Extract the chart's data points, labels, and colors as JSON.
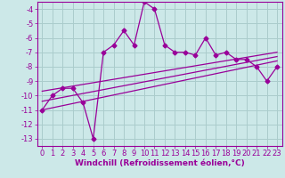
{
  "main_x": [
    0,
    1,
    2,
    3,
    4,
    5,
    6,
    7,
    8,
    9,
    10,
    11,
    12,
    13,
    14,
    15,
    16,
    17,
    18,
    19,
    20,
    21,
    22,
    23
  ],
  "main_y": [
    -11,
    -10,
    -9.5,
    -9.5,
    -10.5,
    -13,
    -7,
    -6.5,
    -5.5,
    -6.5,
    -3.5,
    -4,
    -6.5,
    -7,
    -7,
    -7.2,
    -6,
    -7.2,
    -7,
    -7.5,
    -7.5,
    -8,
    -9,
    -8
  ],
  "line1_x": [
    0,
    23
  ],
  "line1_y": [
    -11.0,
    -7.6
  ],
  "line2_x": [
    0,
    23
  ],
  "line2_y": [
    -10.4,
    -7.3
  ],
  "line3_x": [
    0,
    23
  ],
  "line3_y": [
    -9.7,
    -7.0
  ],
  "bg_color": "#cce8e8",
  "line_color": "#990099",
  "grid_color": "#aacccc",
  "xlabel": "Windchill (Refroidissement éolien,°C)",
  "ylim": [
    -13.5,
    -3.5
  ],
  "xlim": [
    -0.5,
    23.5
  ],
  "yticks": [
    -13,
    -12,
    -11,
    -10,
    -9,
    -8,
    -7,
    -6,
    -5,
    -4
  ],
  "xticks": [
    0,
    1,
    2,
    3,
    4,
    5,
    6,
    7,
    8,
    9,
    10,
    11,
    12,
    13,
    14,
    15,
    16,
    17,
    18,
    19,
    20,
    21,
    22,
    23
  ],
  "marker": "D",
  "marker_size": 2.5,
  "line_width": 0.9,
  "xlabel_fontsize": 6.5,
  "tick_fontsize": 6.0
}
